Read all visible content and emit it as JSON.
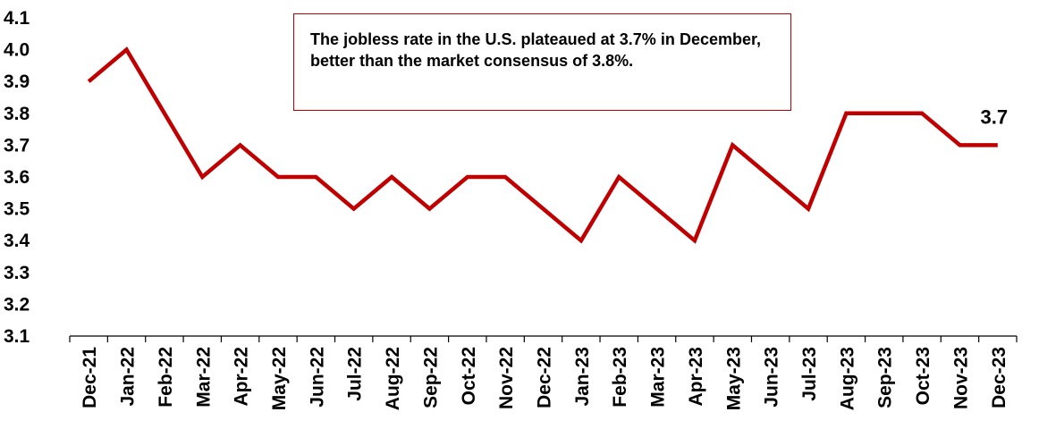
{
  "chart_data": {
    "type": "line",
    "categories": [
      "Dec-21",
      "Jan-22",
      "Feb-22",
      "Mar-22",
      "Apr-22",
      "May-22",
      "Jun-22",
      "Jul-22",
      "Aug-22",
      "Sep-22",
      "Oct-22",
      "Nov-22",
      "Dec-22",
      "Jan-23",
      "Feb-23",
      "Mar-23",
      "Apr-23",
      "May-23",
      "Jun-23",
      "Jul-23",
      "Aug-23",
      "Sep-23",
      "Oct-23",
      "Nov-23",
      "Dec-23"
    ],
    "series": [
      {
        "values": [
          3.9,
          4.0,
          3.8,
          3.6,
          3.7,
          3.6,
          3.6,
          3.5,
          3.6,
          3.5,
          3.6,
          3.6,
          3.5,
          3.4,
          3.6,
          3.5,
          3.4,
          3.7,
          3.6,
          3.5,
          3.8,
          3.8,
          3.8,
          3.7,
          3.7
        ]
      }
    ],
    "ylim": [
      3.1,
      4.1
    ],
    "yticks": [
      "3.1",
      "3.2",
      "3.3",
      "3.4",
      "3.5",
      "3.6",
      "3.7",
      "3.8",
      "3.9",
      "4.0",
      "4.1"
    ],
    "last_point_label": "3.7",
    "line_color": "#c00000",
    "grid": false,
    "legend": "none"
  },
  "annotation": {
    "text": "The jobless rate in the U.S. plateaued at 3.7% in December, better than the market consensus of 3.8%."
  }
}
